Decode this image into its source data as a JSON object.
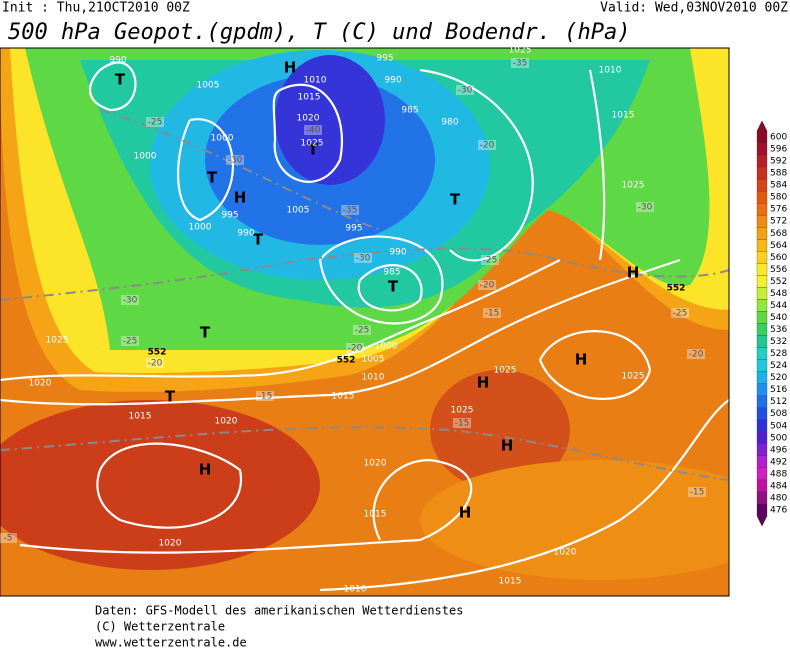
{
  "header": {
    "init": "Init : Thu,21OCT2010 00Z",
    "valid": "Valid: Wed,03NOV2010 00Z",
    "title": "500 hPa Geopot.(gpdm), T (C) und Bodendr. (hPa)"
  },
  "map_labels": [
    "T",
    "H",
    "T",
    "T",
    "H",
    "T",
    "T",
    "T",
    "T",
    "T",
    "H",
    "H",
    "H",
    "H",
    "H",
    "H",
    "990",
    "1005",
    "1010",
    "1015",
    "1020",
    "1025",
    "1000",
    "1000",
    "995",
    "990",
    "1000",
    "1005",
    "995",
    "990",
    "985",
    "985",
    "980",
    "995",
    "990",
    "1025",
    "1010",
    "1015",
    "1025",
    "1000",
    "1005",
    "1010",
    "1015",
    "1020",
    "1015",
    "1020",
    "1025",
    "1020",
    "1015",
    "1020",
    "1020",
    "1015",
    "1010",
    "1025",
    "1025",
    "1025",
    "-25",
    "-30",
    "-35",
    "-40",
    "-30",
    "-25",
    "-20",
    "-30",
    "-25",
    "-20",
    "-15",
    "-15",
    "-15",
    "-20",
    "-25",
    "-20",
    "-30",
    "-30",
    "-25",
    "-20",
    "-15",
    "-5",
    "-35",
    "552",
    "552",
    "552"
  ],
  "colorbar": {
    "labels": [
      600,
      596,
      592,
      588,
      584,
      580,
      576,
      572,
      568,
      564,
      560,
      556,
      552,
      548,
      544,
      540,
      536,
      532,
      528,
      524,
      520,
      516,
      512,
      508,
      504,
      500,
      496,
      492,
      488,
      484,
      480,
      476
    ],
    "colors": [
      "#8b0a2a",
      "#a01030",
      "#b81e28",
      "#c83020",
      "#d84218",
      "#e05a10",
      "#e87010",
      "#f08a10",
      "#f4a010",
      "#f8b818",
      "#fcd020",
      "#fce828",
      "#f0f030",
      "#c8f030",
      "#90e838",
      "#60d840",
      "#38d060",
      "#20c890",
      "#20d0c0",
      "#20c8e0",
      "#20b0f0",
      "#2090f0",
      "#2070e8",
      "#2050e0",
      "#3030d8",
      "#5020d0",
      "#8020d0",
      "#b020d0",
      "#d020c0",
      "#c010a0",
      "#901080",
      "#600060"
    ]
  },
  "footer": [
    "Daten: GFS-Modell des amerikanischen Wetterdienstes",
    "(C) Wetterzentrale",
    "www.wetterzentrale.de"
  ]
}
